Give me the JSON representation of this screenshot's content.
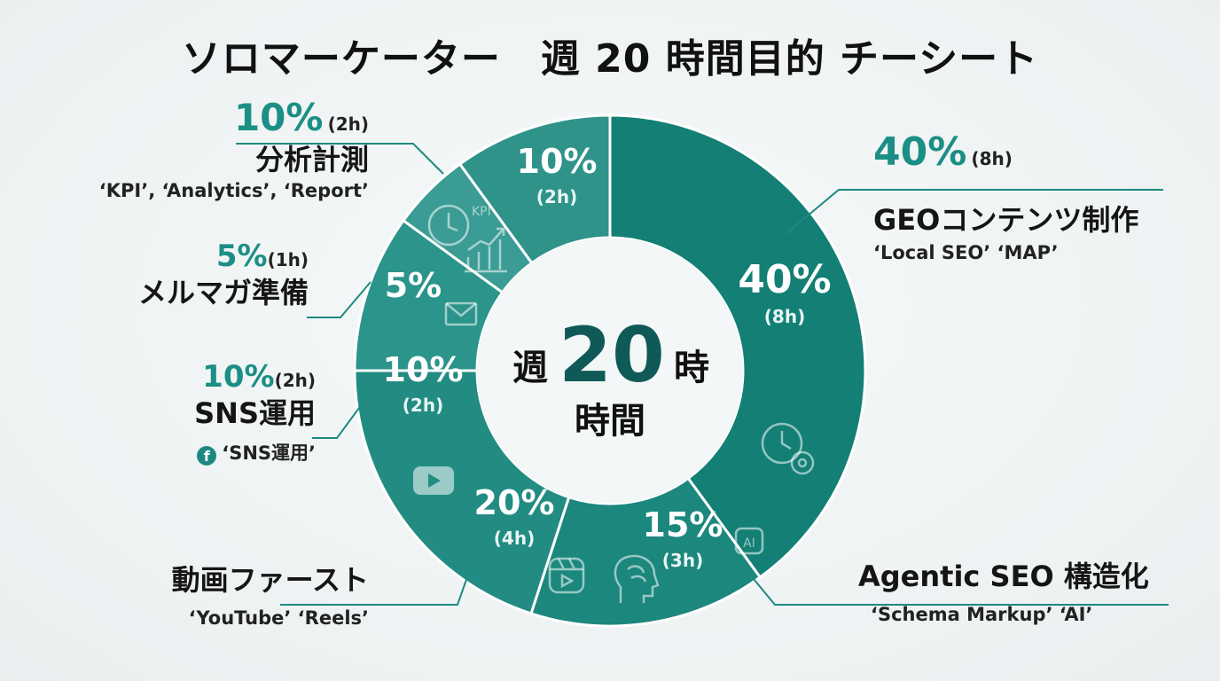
{
  "title": "ソロマーケーター　週 20 時間目的 チーシート",
  "center": {
    "week": "週",
    "hours": "20",
    "hour_suffix": "時",
    "label": "時間"
  },
  "chart_data": {
    "type": "pie",
    "style": "donut",
    "total_hours": 20,
    "slices": [
      {
        "label": "GEOコンテンツ制作",
        "value": 40,
        "pct_label": "40%",
        "hours_label": "(8h)",
        "tags": "‘Local SEO’ ‘MAP’",
        "color": "#137f75",
        "icon": "clock-gear-icon"
      },
      {
        "label": "Agentic SEO 構造化",
        "value": 15,
        "pct_label": "15%",
        "hours_label": "(3h)",
        "tags": "‘Schema Markup’ ‘AI’",
        "color": "#1b877d",
        "icon": "brain-ai-icon"
      },
      {
        "label": "動画ファースト",
        "value": 20,
        "pct_label": "20%",
        "hours_label": "(4h)",
        "tags": "‘YouTube’ ‘Reels’",
        "color": "#228c83",
        "icon": "video-play-icon"
      },
      {
        "label": "SNS運用",
        "value": 10,
        "pct_label": "10%",
        "hours_label": "(2h)",
        "tags": "‘SNS運用’",
        "color": "#2b948b",
        "icon": "facebook-icon"
      },
      {
        "label": "メルマガ準備",
        "value": 5,
        "pct_label": "5%",
        "hours_label": "(1h)",
        "tags": "",
        "color": "#3a9c94",
        "icon": "mail-icon"
      },
      {
        "label": "分析計測",
        "value": 10,
        "pct_label": "10%",
        "hours_label": "(2h)",
        "tags": "‘KPI’, ‘Analytics’, ‘Report’",
        "color": "#2f938a",
        "icon": "kpi-chart-icon"
      }
    ],
    "inner_labels": [
      {
        "pct": "40%",
        "hrs": "(8h)"
      },
      {
        "pct": "15%",
        "hrs": "(3h)"
      },
      {
        "pct": "20%",
        "hrs": "(4h)"
      },
      {
        "pct": "10%",
        "hrs": "(2h)"
      },
      {
        "pct": "5%",
        "hrs": ""
      },
      {
        "pct": "10%",
        "hrs": "(2h)"
      }
    ],
    "kpi_icon_text": "KPI",
    "ai_icon_text": "AI"
  },
  "colors": {
    "accent": "#1b8f86",
    "leader": "#1d8a82",
    "separator": "#ffffff"
  },
  "callouts": {
    "geo": {
      "pct": "40%",
      "hrs": "(8h)",
      "name": "GEOコンテンツ制作",
      "tags": "‘Local SEO’ ‘MAP’"
    },
    "agentic": {
      "name": "Agentic SEO 構造化",
      "tags": "‘Schema Markup’ ‘AI’"
    },
    "video": {
      "name": "動画ファースト",
      "tags": "‘YouTube’ ‘Reels’"
    },
    "sns": {
      "pct": "10%",
      "hrs": "(2h)",
      "name": "SNS運用",
      "icon": "f",
      "tags": "‘SNS運用’"
    },
    "mail": {
      "pct": "5%",
      "hrs": "(1h)",
      "name": "メルマガ準備"
    },
    "analytics": {
      "pct": "10%",
      "hrs": "(2h)",
      "name": "分析計測",
      "tags": "‘KPI’, ‘Analytics’, ‘Report’"
    }
  }
}
